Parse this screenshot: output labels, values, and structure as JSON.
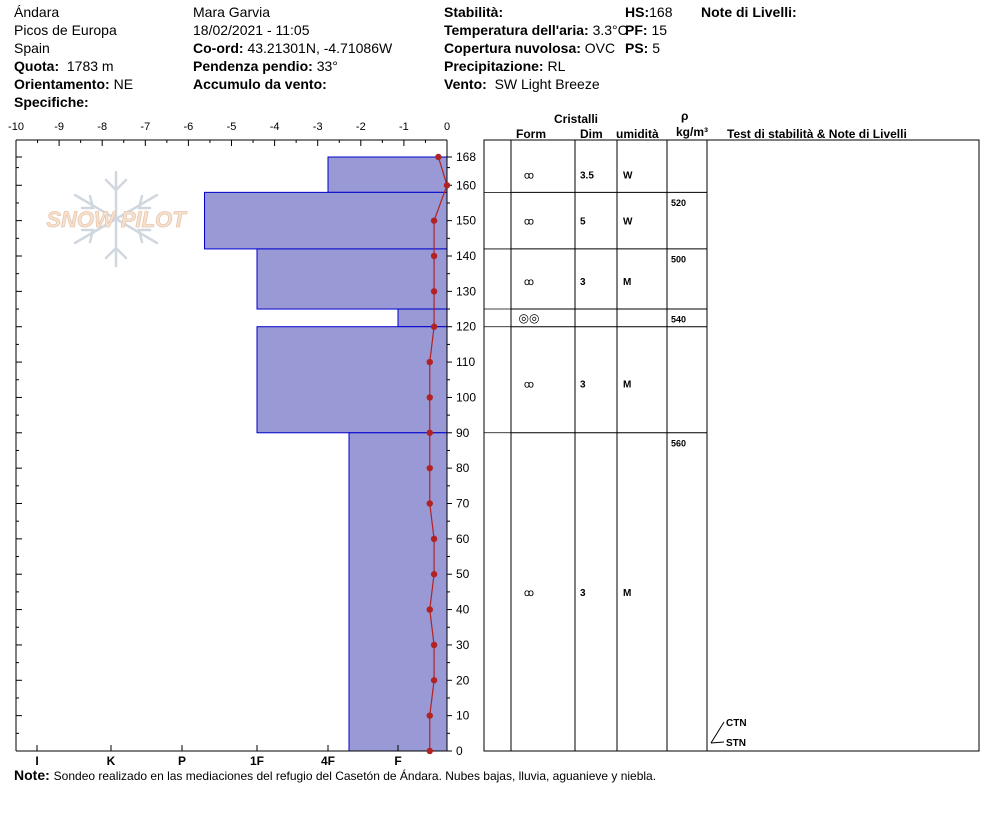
{
  "header": {
    "location": "Ándara",
    "range": "Picos de Europa",
    "country": "Spain",
    "observer": "Mara Garvia",
    "datetime": "18/02/2021 - 11:05",
    "coord_label": "Co-ord:",
    "coord_value": "43.21301N, -4.71086W",
    "quota_label": "Quota:",
    "quota_value": "1783 m",
    "slope_label": "Pendenza pendio:",
    "slope_value": "33°",
    "aspect_label": "Orientamento:",
    "aspect_value": "NE",
    "wind_load_label": "Accumulo da vento:",
    "wind_load_value": "",
    "specifics_label": "Specifiche:",
    "stability_label": "Stabilità:",
    "stability_value": "",
    "air_temp_label": "Temperatura dell'aria:",
    "air_temp_value": "3.3°C",
    "cloud_label": "Copertura nuvolosa:",
    "cloud_value": "OVC",
    "precip_label": "Precipitazione:",
    "precip_value": "RL",
    "wind_label": "Vento:",
    "wind_value": "SW Light Breeze",
    "hs_label": "HS:",
    "hs_value": "168",
    "pf_label": "PF:",
    "pf_value": "15",
    "ps_label": "PS:",
    "ps_value": "5",
    "layer_notes_label": "Note di Livelli:"
  },
  "table_headers": {
    "crystals": "Cristalli",
    "form": "Form",
    "dim": "Dim",
    "humidity": "umidità",
    "rho": "ρ",
    "density_unit": "kg/m³",
    "tests": "Test di stabilità & Note di Livelli"
  },
  "logo_text": "SNOW PILOT",
  "footer": {
    "note_label": "Note:",
    "note_text": "Sondeo realizado en las mediaciones del  refugio del Casetón de Ándara. Nubes bajas, lluvia, aguanieve y niebla."
  },
  "chart_data": {
    "type": "snow_profile",
    "temperature_axis": {
      "label": "",
      "ticks": [
        -10,
        -9,
        -8,
        -7,
        -6,
        -5,
        -4,
        -3,
        -2,
        -1,
        0
      ],
      "range": [
        -10,
        0
      ]
    },
    "height_axis": {
      "label": "",
      "ticks": [
        0,
        10,
        20,
        30,
        40,
        50,
        60,
        70,
        80,
        90,
        100,
        110,
        120,
        130,
        140,
        150,
        160,
        168
      ],
      "range": [
        0,
        168
      ]
    },
    "hardness_axis": {
      "ticks": [
        "I",
        "K",
        "P",
        "1F",
        "4F",
        "F"
      ]
    },
    "hardness_profile": [
      {
        "top": 168,
        "bottom": 158,
        "hardness": "P",
        "hardness_index": 2.0
      },
      {
        "top": 158,
        "bottom": 142,
        "hardness": "4F+",
        "hardness_index": 3.7
      },
      {
        "top": 142,
        "bottom": 125,
        "hardness": "1F",
        "hardness_index": 3.0
      },
      {
        "top": 125,
        "bottom": 120,
        "hardness": "K-",
        "hardness_index": 1.0
      },
      {
        "top": 120,
        "bottom": 90,
        "hardness": "1F",
        "hardness_index": 3.0
      },
      {
        "top": 90,
        "bottom": 0,
        "hardness": "P-",
        "hardness_index": 1.7
      }
    ],
    "temperature_profile": [
      {
        "h": 168,
        "t": -0.2
      },
      {
        "h": 160,
        "t": 0.0
      },
      {
        "h": 150,
        "t": -0.3
      },
      {
        "h": 140,
        "t": -0.3
      },
      {
        "h": 130,
        "t": -0.3
      },
      {
        "h": 120,
        "t": -0.3
      },
      {
        "h": 110,
        "t": -0.4
      },
      {
        "h": 100,
        "t": -0.4
      },
      {
        "h": 90,
        "t": -0.4
      },
      {
        "h": 80,
        "t": -0.4
      },
      {
        "h": 70,
        "t": -0.4
      },
      {
        "h": 60,
        "t": -0.3
      },
      {
        "h": 50,
        "t": -0.3
      },
      {
        "h": 40,
        "t": -0.4
      },
      {
        "h": 30,
        "t": -0.3
      },
      {
        "h": 20,
        "t": -0.3
      },
      {
        "h": 10,
        "t": -0.4
      },
      {
        "h": 0,
        "t": -0.4
      }
    ],
    "layers": [
      {
        "top": 168,
        "bottom": 158,
        "form": "ꝏ",
        "form_row_height": 163,
        "dim": "3.5",
        "humidity": "W",
        "density": "",
        "density_height": 163
      },
      {
        "top": 158,
        "bottom": 142,
        "form": "ꝏ",
        "form_row_height": 150,
        "dim": "5",
        "humidity": "W",
        "density": "520",
        "density_height": 157
      },
      {
        "top": 142,
        "bottom": 125,
        "form": "ꝏ",
        "form_row_height": 133,
        "dim": "3",
        "humidity": "M",
        "density": "500",
        "density_height": 141
      },
      {
        "top": 125,
        "bottom": 120,
        "form": "◎◎",
        "form_row_height": 122.5,
        "dim": "",
        "humidity": "",
        "density": "540",
        "density_height": 124
      },
      {
        "top": 120,
        "bottom": 90,
        "form": "ꝏ",
        "form_row_height": 104,
        "dim": "3",
        "humidity": "M",
        "density": "",
        "density_height": 104
      },
      {
        "top": 90,
        "bottom": 0,
        "form": "ꝏ",
        "form_row_height": 45,
        "dim": "3",
        "humidity": "M",
        "density": "560",
        "density_height": 89
      }
    ],
    "stability_tests": [
      {
        "label": "CTN",
        "height": 6
      },
      {
        "label": "STN",
        "height": 0
      }
    ],
    "colors": {
      "hardness_fill": "#9999d6",
      "hardness_stroke": "#0000cc",
      "temperature": "#b22222"
    }
  }
}
